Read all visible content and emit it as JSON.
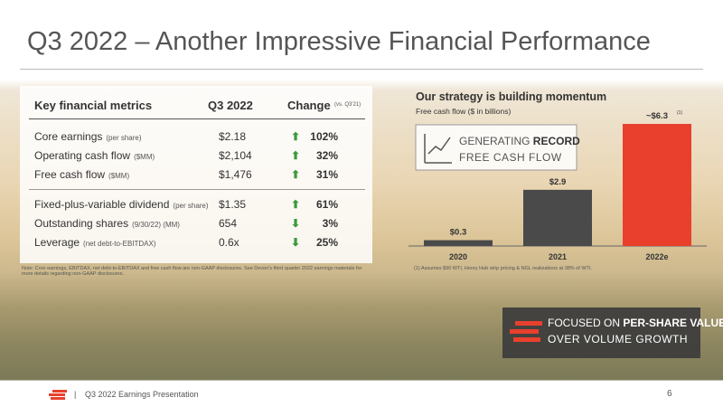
{
  "title": "Q3 2022 – Another Impressive Financial Performance",
  "table": {
    "headers": [
      "Key financial metrics",
      "Q3 2022",
      "Change",
      "(vs. Q3'21)"
    ],
    "groups": [
      [
        {
          "label": "Core earnings",
          "note": "(per share)",
          "value": "$2.18",
          "arrow": "⬆",
          "change": "102%"
        },
        {
          "label": "Operating cash flow",
          "note": "($MM)",
          "value": "$2,104",
          "arrow": "⬆",
          "change": "32%"
        },
        {
          "label": "Free cash flow",
          "note": "($MM)",
          "value": "$1,476",
          "arrow": "⬆",
          "change": "31%"
        }
      ],
      [
        {
          "label": "Fixed-plus-variable dividend",
          "note": "(per share)",
          "value": "$1.35",
          "arrow": "⬆",
          "change": "61%"
        },
        {
          "label": "Outstanding shares",
          "note": "(9/30/22) (MM)",
          "value": "654",
          "arrow": "⬇",
          "change": "3%"
        },
        {
          "label": "Leverage",
          "note": "(net debt-to-EBITDAX)",
          "value": "0.6x",
          "arrow": "⬇",
          "change": "25%"
        }
      ]
    ],
    "footnote": "Note: Core earnings, EBITDAX, net debt-to-EBITDAX and free cash flow are non-GAAP disclosures. See Devon's third quarter 2022 earnings materials for more details regarding non-GAAP disclosures."
  },
  "chart_data": {
    "type": "bar",
    "title": "Our strategy is building momentum",
    "subtitle": "Free cash flow ($ in billions)",
    "categories": [
      "2020",
      "2021",
      "2022e"
    ],
    "values": [
      0.3,
      2.9,
      6.3
    ],
    "value_labels": [
      "$0.3",
      "$2.9",
      "~$6.3"
    ],
    "colors": [
      "#4a4a4a",
      "#4a4a4a",
      "#e8402d"
    ],
    "label_note": "(1)",
    "callout": [
      "GENERATING ",
      "RECORD",
      "FREE CASH FLOW"
    ],
    "footnote": "(1) Assumes $90 WTI, Henry Hub strip pricing & NGL realizations at 38% of WTI."
  },
  "banner": [
    "FOCUSED ON ",
    "PER-SHARE VALUE",
    "OVER VOLUME GROWTH"
  ],
  "footer": {
    "label": "Q3 2022 Earnings Presentation",
    "page": "6"
  }
}
